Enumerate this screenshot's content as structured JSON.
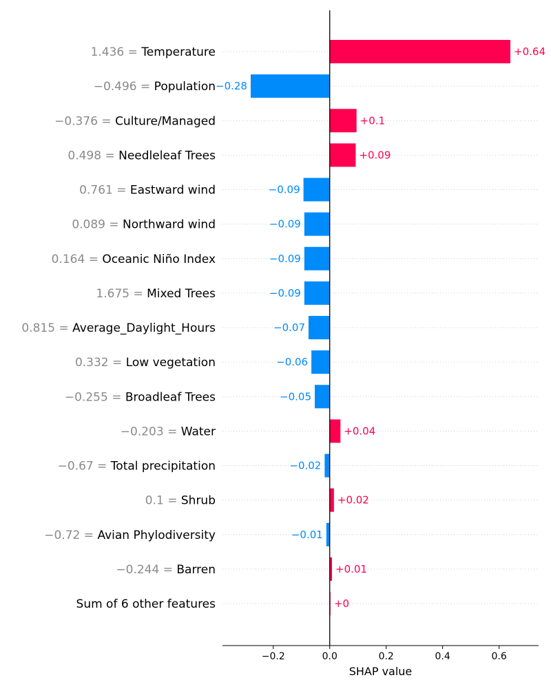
{
  "chart_data": {
    "type": "bar",
    "subtype": "shap-bar",
    "xlabel": "SHAP value",
    "xlim": [
      -0.38,
      0.74
    ],
    "xticks": [
      {
        "value": -0.2,
        "label": "−0.2"
      },
      {
        "value": 0.0,
        "label": "0.0"
      },
      {
        "value": 0.2,
        "label": "0.2"
      },
      {
        "value": 0.4,
        "label": "0.4"
      },
      {
        "value": 0.6,
        "label": "0.6"
      }
    ],
    "colors": {
      "positive": "#ff0051",
      "negative": "#008bfb",
      "label_value": "#8a8a8a",
      "gridline": "#cccccc",
      "axis": "#000000"
    },
    "grid": "dotted horizontal per row",
    "features": [
      {
        "value_text": "1.436 =",
        "name": "Temperature",
        "shap": 0.64,
        "label": "+0.64"
      },
      {
        "value_text": "−0.496 =",
        "name": "Population",
        "shap": -0.28,
        "label": "−0.28"
      },
      {
        "value_text": "−0.376 =",
        "name": "Culture/Managed",
        "shap": 0.095,
        "label": "+0.1"
      },
      {
        "value_text": "0.498 =",
        "name": "Needleleaf Trees",
        "shap": 0.092,
        "label": "+0.09"
      },
      {
        "value_text": "0.761 =",
        "name": "Eastward wind",
        "shap": -0.093,
        "label": "−0.09"
      },
      {
        "value_text": "0.089 =",
        "name": "Northward wind",
        "shap": -0.09,
        "label": "−0.09"
      },
      {
        "value_text": "0.164 =",
        "name": "Oceanic Niño Index",
        "shap": -0.09,
        "label": "−0.09"
      },
      {
        "value_text": "1.675 =",
        "name": "Mixed Trees",
        "shap": -0.09,
        "label": "−0.09"
      },
      {
        "value_text": "0.815 =",
        "name": "Average_Daylight_Hours",
        "shap": -0.075,
        "label": "−0.07"
      },
      {
        "value_text": "0.332 =",
        "name": "Low vegetation",
        "shap": -0.065,
        "label": "−0.06"
      },
      {
        "value_text": "−0.255 =",
        "name": "Broadleaf Trees",
        "shap": -0.053,
        "label": "−0.05"
      },
      {
        "value_text": "−0.203 =",
        "name": "Water",
        "shap": 0.038,
        "label": "+0.04"
      },
      {
        "value_text": "−0.67 =",
        "name": "Total precipitation",
        "shap": -0.018,
        "label": "−0.02"
      },
      {
        "value_text": "0.1 =",
        "name": "Shrub",
        "shap": 0.015,
        "label": "+0.02"
      },
      {
        "value_text": "−0.72 =",
        "name": "Avian Phylodiversity",
        "shap": -0.012,
        "label": "−0.01"
      },
      {
        "value_text": "−0.244 =",
        "name": "Barren",
        "shap": 0.008,
        "label": "+0.01"
      },
      {
        "value_text": "",
        "name": "Sum of 6 other features",
        "shap": 0.003,
        "label": "+0"
      }
    ]
  }
}
